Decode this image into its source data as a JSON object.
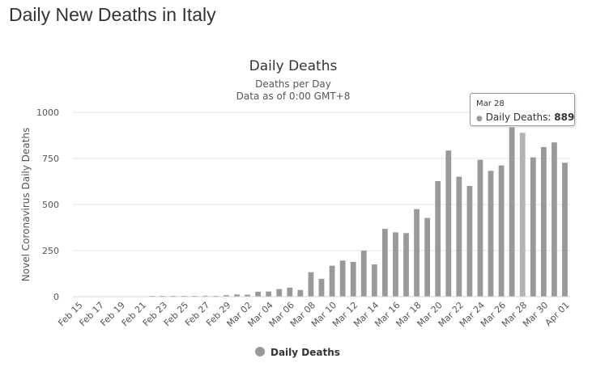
{
  "page": {
    "title": "Daily New Deaths in Italy"
  },
  "chart_data": {
    "type": "bar",
    "title": "Daily Deaths",
    "subtitle": "Deaths per Day",
    "subtitle2": "Data as of 0:00 GMT+8",
    "ylabel": "Novel Coronavirus Daily Deaths",
    "xlabel": "",
    "ylim": [
      0,
      1000
    ],
    "yticks": [
      0,
      250,
      500,
      750,
      1000
    ],
    "grid": true,
    "legend_position": "bottom-center",
    "color": "#999999",
    "categories": [
      "Feb 15",
      "Feb 16",
      "Feb 17",
      "Feb 18",
      "Feb 19",
      "Feb 20",
      "Feb 21",
      "Feb 22",
      "Feb 23",
      "Feb 24",
      "Feb 25",
      "Feb 26",
      "Feb 27",
      "Feb 28",
      "Feb 29",
      "Mar 01",
      "Mar 02",
      "Mar 03",
      "Mar 04",
      "Mar 05",
      "Mar 06",
      "Mar 07",
      "Mar 08",
      "Mar 09",
      "Mar 10",
      "Mar 11",
      "Mar 12",
      "Mar 13",
      "Mar 14",
      "Mar 15",
      "Mar 16",
      "Mar 17",
      "Mar 18",
      "Mar 19",
      "Mar 20",
      "Mar 21",
      "Mar 22",
      "Mar 23",
      "Mar 24",
      "Mar 25",
      "Mar 26",
      "Mar 27",
      "Mar 28",
      "Mar 29",
      "Mar 30",
      "Mar 31",
      "Apr 01"
    ],
    "tick_labels": [
      "Feb 15",
      "Feb 17",
      "Feb 19",
      "Feb 21",
      "Feb 23",
      "Feb 25",
      "Feb 27",
      "Feb 29",
      "Mar 02",
      "Mar 04",
      "Mar 06",
      "Mar 08",
      "Mar 10",
      "Mar 12",
      "Mar 14",
      "Mar 16",
      "Mar 18",
      "Mar 20",
      "Mar 22",
      "Mar 24",
      "Mar 26",
      "Mar 28",
      "Mar 30",
      "Apr 01"
    ],
    "series": [
      {
        "name": "Daily Deaths",
        "values": [
          0,
          0,
          0,
          0,
          0,
          0,
          0,
          1,
          2,
          4,
          3,
          2,
          5,
          4,
          8,
          12,
          11,
          27,
          28,
          41,
          49,
          36,
          133,
          97,
          168,
          196,
          189,
          250,
          175,
          368,
          349,
          345,
          475,
          427,
          627,
          793,
          651,
          601,
          743,
          683,
          712,
          919,
          889,
          756,
          812,
          837,
          727
        ]
      }
    ],
    "tooltip": {
      "category": "Mar 28",
      "series": "Daily Deaths",
      "value": "889"
    }
  }
}
